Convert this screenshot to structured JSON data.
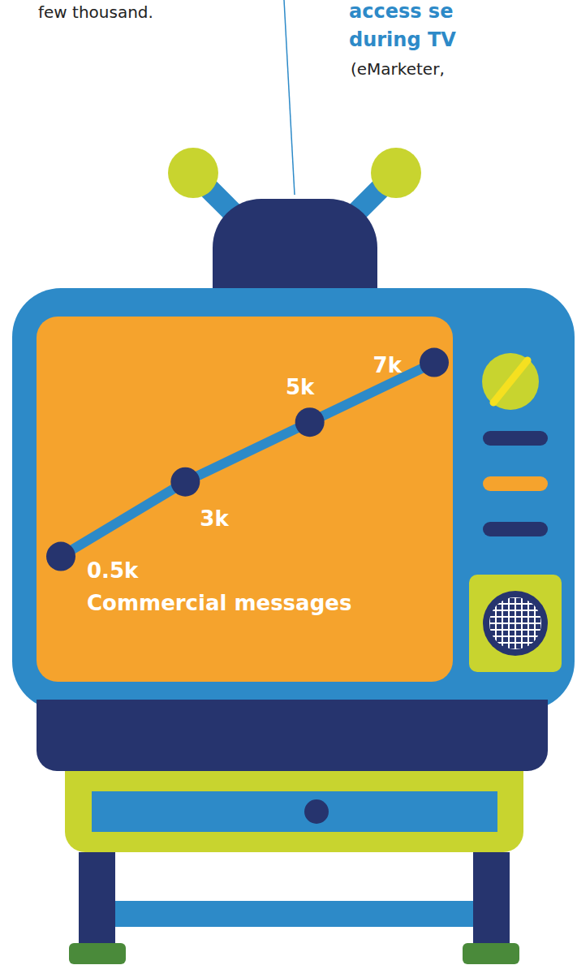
{
  "chart_data": {
    "type": "line",
    "title": "Commercial messages",
    "annotations": [
      "few thousand.",
      "access se",
      "during TV",
      "(eMarketer,"
    ],
    "categories": [
      null,
      null,
      null,
      null
    ],
    "values": [
      0.5,
      3,
      5,
      7
    ],
    "value_labels": [
      "0.5k",
      "3k",
      "5k",
      "7k"
    ],
    "ylim": [
      0,
      8
    ],
    "color": "#2d8ac8",
    "marker": "circle",
    "data_labels": true,
    "tick_labels": false
  }
}
